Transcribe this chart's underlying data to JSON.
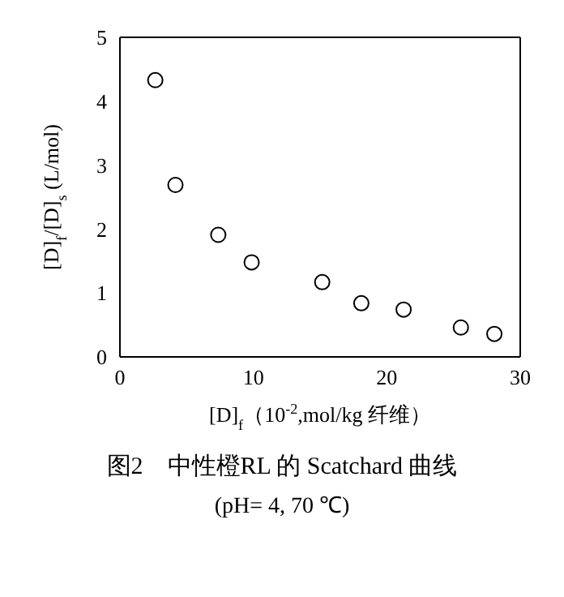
{
  "chart_data": {
    "type": "scatter",
    "title": "图2　中性橙RL 的 Scatchard 曲线",
    "subtitle": "(pH= 4, 70 ℃)",
    "xlabel": "[D]$_{f}$（10$^{-2}$,mol/kg 纤维）",
    "ylabel": "[D]$_{f}$/[D]$_{s}$ (L/mol)",
    "x": [
      2.65,
      4.16,
      7.37,
      9.87,
      15.16,
      18.09,
      21.26,
      25.55,
      28.06
    ],
    "series": [
      {
        "color": "#000000",
        "values": [
          4.33,
          2.69,
          1.91,
          1.48,
          1.17,
          0.84,
          0.74,
          0.46,
          0.36
        ]
      }
    ],
    "xlim": [
      0,
      30
    ],
    "xticks": [
      0,
      10,
      20,
      30
    ],
    "ylim": [
      0,
      5
    ],
    "yticks": [
      0,
      1,
      2,
      3,
      4,
      5
    ],
    "grid": false,
    "legend": false,
    "marker": "circle"
  }
}
